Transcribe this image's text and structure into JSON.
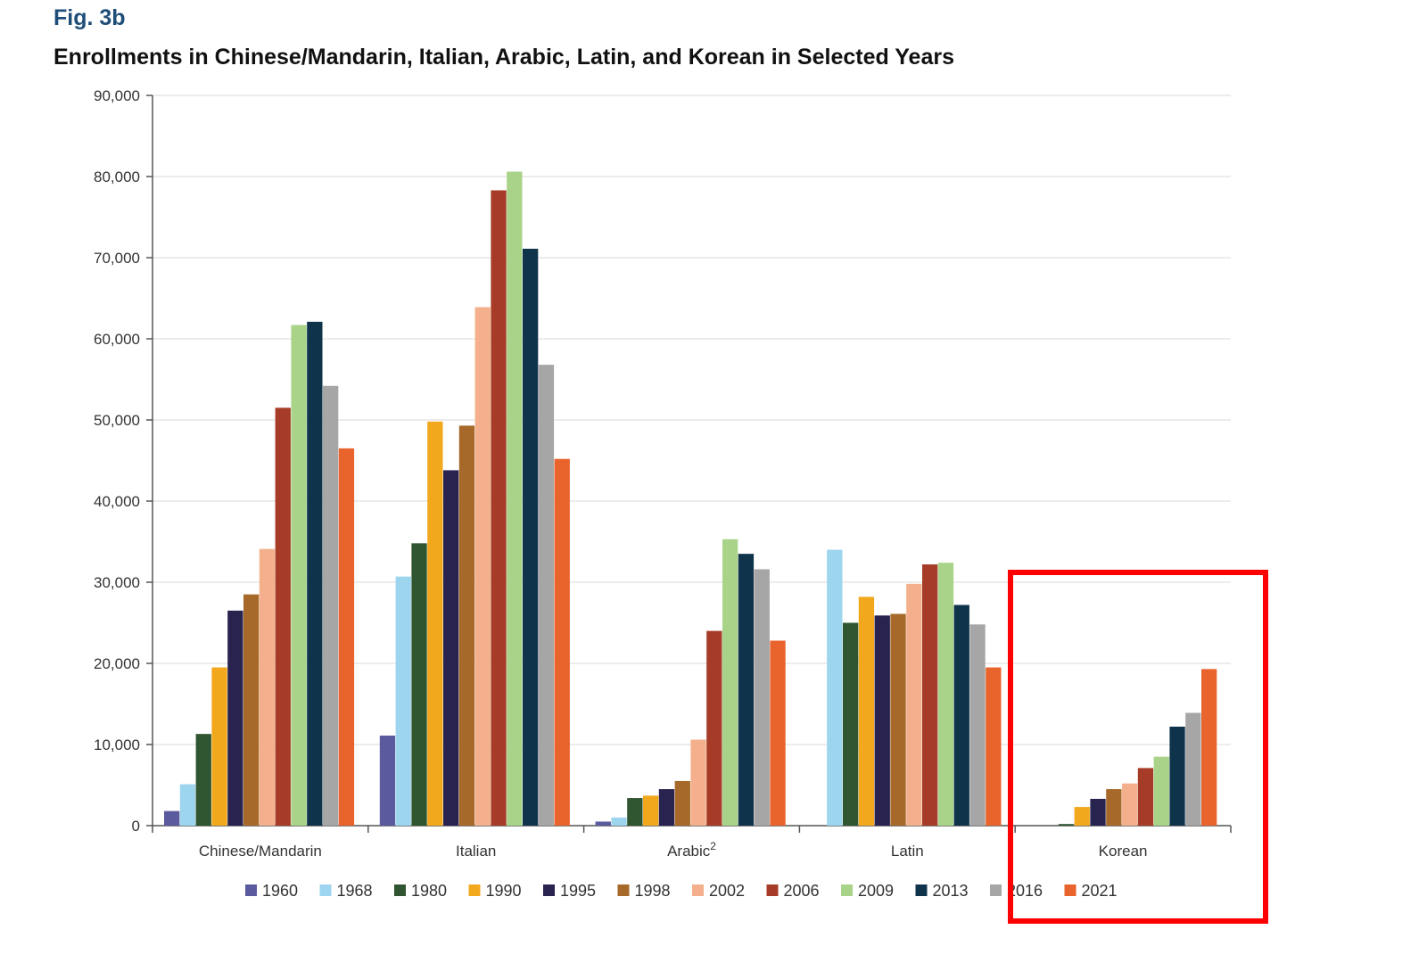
{
  "figure_label": "Fig. 3b",
  "chart_data": {
    "type": "bar",
    "title": "Enrollments in Chinese/Mandarin, Italian, Arabic, Latin, and Korean in Selected Years",
    "xlabel": "",
    "ylabel": "",
    "ylim": [
      0,
      90000
    ],
    "yticks": [
      0,
      10000,
      20000,
      30000,
      40000,
      50000,
      60000,
      70000,
      80000,
      90000
    ],
    "ytick_labels": [
      "0",
      "10,000",
      "20,000",
      "30,000",
      "40,000",
      "50,000",
      "60,000",
      "70,000",
      "80,000",
      "90,000"
    ],
    "grid": true,
    "legend_position": "bottom",
    "categories": [
      "Chinese/Mandarin",
      "Italian",
      "Arabic",
      "Latin",
      "Korean"
    ],
    "category_superscripts": [
      "",
      "",
      "2",
      "",
      ""
    ],
    "series": [
      {
        "name": "1960",
        "color": "#5b5a9e",
        "values": [
          1800,
          11100,
          500,
          0,
          0
        ]
      },
      {
        "name": "1968",
        "color": "#9dd5ef",
        "values": [
          5100,
          30700,
          1000,
          34000,
          0
        ]
      },
      {
        "name": "1980",
        "color": "#2f5630",
        "values": [
          11300,
          34800,
          3400,
          25000,
          200
        ]
      },
      {
        "name": "1990",
        "color": "#f2a81d",
        "values": [
          19500,
          49800,
          3700,
          28200,
          2300
        ]
      },
      {
        "name": "1995",
        "color": "#28234f",
        "values": [
          26500,
          43800,
          4500,
          25900,
          3300
        ]
      },
      {
        "name": "1998",
        "color": "#a6692a",
        "values": [
          28500,
          49300,
          5500,
          26100,
          4500
        ]
      },
      {
        "name": "2002",
        "color": "#f4b08c",
        "values": [
          34100,
          63900,
          10600,
          29800,
          5200
        ]
      },
      {
        "name": "2006",
        "color": "#a63c27",
        "values": [
          51500,
          78300,
          24000,
          32200,
          7100
        ]
      },
      {
        "name": "2009",
        "color": "#a9d388",
        "values": [
          61700,
          80600,
          35300,
          32400,
          8500
        ]
      },
      {
        "name": "2013",
        "color": "#0f334b",
        "values": [
          62100,
          71100,
          33500,
          27200,
          12200
        ]
      },
      {
        "name": "2016",
        "color": "#a6a6a6",
        "values": [
          54200,
          56800,
          31600,
          24800,
          13900
        ]
      },
      {
        "name": "2021",
        "color": "#e9632d",
        "values": [
          46500,
          45200,
          22800,
          19500,
          19300
        ]
      }
    ],
    "annotations": [
      {
        "type": "highlight-box",
        "target_category": "Korean",
        "color": "#ff0000"
      }
    ]
  }
}
